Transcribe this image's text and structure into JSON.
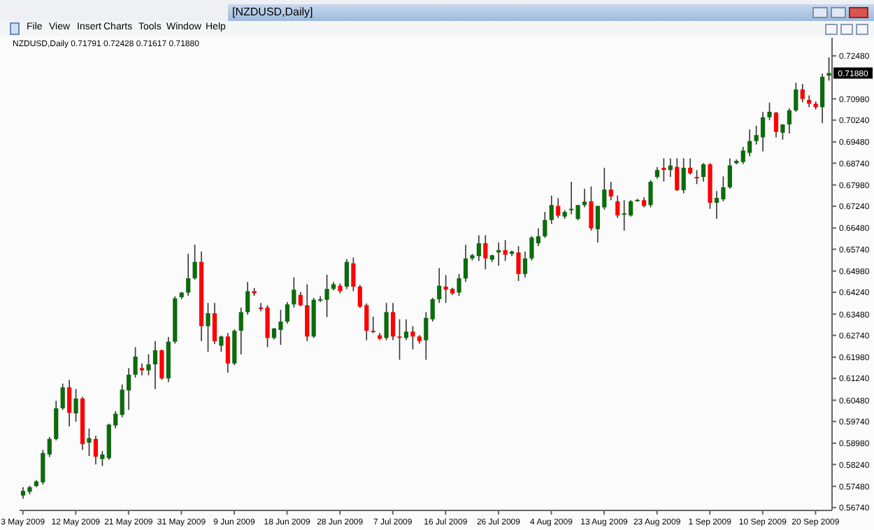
{
  "chart_data": {
    "type": "candlestick",
    "title": "[NZDUSD,Daily]",
    "subtitle": "NZDUSD,Daily  0.71791 0.72428 0.71617 0.71880",
    "annotations": [
      "File",
      "View",
      "Insert",
      "Charts",
      "Tools",
      "Window",
      "Help",
      "0.71880"
    ],
    "categories": [
      "3 May 2009",
      null,
      null,
      null,
      null,
      null,
      null,
      null,
      "12 May 2009",
      null,
      null,
      null,
      null,
      null,
      null,
      null,
      "21 May 2009",
      null,
      null,
      null,
      null,
      null,
      null,
      null,
      "31 May 2009",
      null,
      null,
      null,
      null,
      null,
      null,
      null,
      "9 Jun 2009",
      null,
      null,
      null,
      null,
      null,
      null,
      null,
      "18 Jun 2009",
      null,
      null,
      null,
      null,
      null,
      null,
      null,
      "28 Jun 2009",
      null,
      null,
      null,
      null,
      null,
      null,
      null,
      "7 Jul 2009",
      null,
      null,
      null,
      null,
      null,
      null,
      null,
      "16 Jul 2009",
      null,
      null,
      null,
      null,
      null,
      null,
      null,
      "26 Jul 2009",
      null,
      null,
      null,
      null,
      null,
      null,
      null,
      "4 Aug 2009",
      null,
      null,
      null,
      null,
      null,
      null,
      null,
      "13 Aug 2009",
      null,
      null,
      null,
      null,
      null,
      null,
      null,
      "23 Aug 2009",
      null,
      null,
      null,
      null,
      null,
      null,
      null,
      "1 Sep 2009",
      null,
      null,
      null,
      null,
      null,
      null,
      null,
      "10 Sep 2009",
      null,
      null,
      null,
      null,
      null,
      null,
      null,
      "20 Sep 2009",
      null,
      null
    ],
    "ohlc": [
      [
        0.5716,
        0.5745,
        0.5705,
        0.5732
      ],
      [
        0.5729,
        0.575,
        0.572,
        0.5745
      ],
      [
        0.5749,
        0.577,
        0.5745,
        0.5765
      ],
      [
        0.5762,
        0.5875,
        0.5754,
        0.5864
      ],
      [
        0.5859,
        0.592,
        0.585,
        0.5913
      ],
      [
        0.5913,
        0.6046,
        0.5908,
        0.602
      ],
      [
        0.602,
        0.6106,
        0.6014,
        0.6093
      ],
      [
        0.6093,
        0.6119,
        0.5957,
        0.6004
      ],
      [
        0.6002,
        0.6087,
        0.5973,
        0.6054
      ],
      [
        0.6054,
        0.606,
        0.5875,
        0.5895
      ],
      [
        0.59,
        0.5949,
        0.5854,
        0.5916
      ],
      [
        0.5913,
        0.5924,
        0.5824,
        0.5851
      ],
      [
        0.5843,
        0.5871,
        0.5819,
        0.5859
      ],
      [
        0.5846,
        0.5966,
        0.584,
        0.5963
      ],
      [
        0.596,
        0.601,
        0.595,
        0.6001
      ],
      [
        0.5997,
        0.6103,
        0.5989,
        0.6085
      ],
      [
        0.6082,
        0.616,
        0.6014,
        0.6137
      ],
      [
        0.6137,
        0.6233,
        0.6127,
        0.62
      ],
      [
        0.616,
        0.6176,
        0.6135,
        0.6152
      ],
      [
        0.6152,
        0.6208,
        0.6135,
        0.6173
      ],
      [
        0.6173,
        0.6254,
        0.6087,
        0.6222
      ],
      [
        0.6222,
        0.6225,
        0.6119,
        0.6124
      ],
      [
        0.6124,
        0.6268,
        0.6111,
        0.6252
      ],
      [
        0.6252,
        0.641,
        0.6245,
        0.6403
      ],
      [
        0.6407,
        0.6425,
        0.64,
        0.6423
      ],
      [
        0.6423,
        0.6558,
        0.6412,
        0.6473
      ],
      [
        0.6473,
        0.659,
        0.6468,
        0.653
      ],
      [
        0.653,
        0.6566,
        0.6254,
        0.6306
      ],
      [
        0.6306,
        0.6387,
        0.6217,
        0.6351
      ],
      [
        0.6351,
        0.6387,
        0.6244,
        0.6254
      ],
      [
        0.6238,
        0.6273,
        0.6217,
        0.627
      ],
      [
        0.627,
        0.6282,
        0.6144,
        0.6176
      ],
      [
        0.6176,
        0.6295,
        0.617,
        0.629
      ],
      [
        0.629,
        0.6371,
        0.6208,
        0.6355
      ],
      [
        0.6355,
        0.646,
        0.6346,
        0.6428
      ],
      [
        0.6428,
        0.6439,
        0.6412,
        0.642
      ],
      [
        0.6371,
        0.6387,
        0.6358,
        0.6368
      ],
      [
        0.6371,
        0.6379,
        0.6233,
        0.6265
      ],
      [
        0.6265,
        0.63,
        0.626,
        0.6298
      ],
      [
        0.6293,
        0.6363,
        0.6241,
        0.6322
      ],
      [
        0.6322,
        0.639,
        0.6315,
        0.6382
      ],
      [
        0.6382,
        0.6476,
        0.6371,
        0.6433
      ],
      [
        0.6415,
        0.6425,
        0.6375,
        0.6379
      ],
      [
        0.6379,
        0.6452,
        0.6254,
        0.627
      ],
      [
        0.627,
        0.6405,
        0.6265,
        0.6398
      ],
      [
        0.6398,
        0.641,
        0.639,
        0.64
      ],
      [
        0.6398,
        0.6485,
        0.6338,
        0.6436
      ],
      [
        0.6436,
        0.646,
        0.643,
        0.6452
      ],
      [
        0.6447,
        0.6455,
        0.642,
        0.6428
      ],
      [
        0.6444,
        0.654,
        0.6435,
        0.653
      ],
      [
        0.6525,
        0.6545,
        0.6428,
        0.6444
      ],
      [
        0.6444,
        0.645,
        0.637,
        0.6374
      ],
      [
        0.6379,
        0.6385,
        0.6257,
        0.629
      ],
      [
        0.629,
        0.6339,
        0.6282,
        0.6288
      ],
      [
        0.6274,
        0.6282,
        0.6258,
        0.6262
      ],
      [
        0.6265,
        0.6387,
        0.6257,
        0.6355
      ],
      [
        0.6355,
        0.6387,
        0.6257,
        0.627
      ],
      [
        0.627,
        0.633,
        0.6189,
        0.6265
      ],
      [
        0.6265,
        0.633,
        0.6257,
        0.6287
      ],
      [
        0.6287,
        0.6306,
        0.6225,
        0.627
      ],
      [
        0.627,
        0.6275,
        0.6245,
        0.6254
      ],
      [
        0.6257,
        0.6355,
        0.6189,
        0.6335
      ],
      [
        0.633,
        0.6405,
        0.6322,
        0.64
      ],
      [
        0.64,
        0.6508,
        0.6387,
        0.6447
      ],
      [
        0.6444,
        0.6484,
        0.6387,
        0.6433
      ],
      [
        0.6436,
        0.644,
        0.6415,
        0.642
      ],
      [
        0.6423,
        0.6488,
        0.6412,
        0.6473
      ],
      [
        0.6472,
        0.659,
        0.646,
        0.6542
      ],
      [
        0.6542,
        0.6558,
        0.6535,
        0.6553
      ],
      [
        0.655,
        0.6623,
        0.6533,
        0.6595
      ],
      [
        0.6595,
        0.6623,
        0.6504,
        0.6542
      ],
      [
        0.6538,
        0.6555,
        0.653,
        0.6553
      ],
      [
        0.6563,
        0.6598,
        0.6517,
        0.6571
      ],
      [
        0.6571,
        0.6606,
        0.6533,
        0.6555
      ],
      [
        0.6558,
        0.657,
        0.655,
        0.6566
      ],
      [
        0.6563,
        0.6585,
        0.6463,
        0.6488
      ],
      [
        0.6488,
        0.6566,
        0.6476,
        0.6542
      ],
      [
        0.6542,
        0.662,
        0.6535,
        0.6615
      ],
      [
        0.6595,
        0.6647,
        0.6585,
        0.6619
      ],
      [
        0.6619,
        0.6704,
        0.6614,
        0.6676
      ],
      [
        0.6676,
        0.6761,
        0.6663,
        0.6728
      ],
      [
        0.6725,
        0.6752,
        0.6683,
        0.6691
      ],
      [
        0.6688,
        0.671,
        0.668,
        0.6704
      ],
      [
        0.6711,
        0.6809,
        0.6696,
        0.6715
      ],
      [
        0.668,
        0.6728,
        0.6675,
        0.6728
      ],
      [
        0.6728,
        0.6785,
        0.672,
        0.674
      ],
      [
        0.6741,
        0.6793,
        0.6639,
        0.6647
      ],
      [
        0.6644,
        0.6725,
        0.6598,
        0.6725
      ],
      [
        0.672,
        0.6858,
        0.6712,
        0.6782
      ],
      [
        0.6782,
        0.6809,
        0.6745,
        0.6758
      ],
      [
        0.6741,
        0.6761,
        0.6683,
        0.6692
      ],
      [
        0.6696,
        0.6745,
        0.6639,
        0.6699
      ],
      [
        0.6692,
        0.6745,
        0.6688,
        0.6741
      ],
      [
        0.6744,
        0.675,
        0.674,
        0.6746
      ],
      [
        0.6745,
        0.6755,
        0.672,
        0.6725
      ],
      [
        0.6728,
        0.6815,
        0.672,
        0.6809
      ],
      [
        0.6826,
        0.686,
        0.682,
        0.685
      ],
      [
        0.6858,
        0.6891,
        0.681,
        0.685
      ],
      [
        0.685,
        0.6891,
        0.6826,
        0.6866
      ],
      [
        0.6861,
        0.6891,
        0.6777,
        0.678
      ],
      [
        0.678,
        0.6891,
        0.6769,
        0.6858
      ],
      [
        0.6858,
        0.6891,
        0.6834,
        0.6839
      ],
      [
        0.6826,
        0.685,
        0.6801,
        0.6822
      ],
      [
        0.6826,
        0.6874,
        0.681,
        0.687
      ],
      [
        0.687,
        0.6874,
        0.6715,
        0.6736
      ],
      [
        0.6736,
        0.6777,
        0.668,
        0.6753
      ],
      [
        0.6748,
        0.6828,
        0.6741,
        0.679
      ],
      [
        0.679,
        0.6891,
        0.6785,
        0.6866
      ],
      [
        0.6874,
        0.6887,
        0.687,
        0.6882
      ],
      [
        0.6878,
        0.6931,
        0.6871,
        0.6918
      ],
      [
        0.691,
        0.6991,
        0.6898,
        0.6951
      ],
      [
        0.6951,
        0.7004,
        0.6939,
        0.6972
      ],
      [
        0.6964,
        0.7053,
        0.6915,
        0.7034
      ],
      [
        0.7034,
        0.7085,
        0.7024,
        0.7053
      ],
      [
        0.705,
        0.7053,
        0.6964,
        0.6983
      ],
      [
        0.698,
        0.701,
        0.6956,
        0.7009
      ],
      [
        0.7009,
        0.7065,
        0.6977,
        0.7058
      ],
      [
        0.7058,
        0.7154,
        0.7053,
        0.7131
      ],
      [
        0.7131,
        0.715,
        0.7086,
        0.7098
      ],
      [
        0.7094,
        0.711,
        0.7069,
        0.7081
      ],
      [
        0.7081,
        0.7089,
        0.7061,
        0.7069
      ],
      [
        0.7069,
        0.7186,
        0.7013,
        0.7175
      ],
      [
        0.71791,
        0.72428,
        0.71617,
        0.7188
      ]
    ],
    "colors": [
      "#0c6b0c",
      "#0c6b0c",
      "#0c6b0c",
      "#0c6b0c",
      "#0c6b0c",
      "#0c6b0c",
      "#0c6b0c",
      "#ff0000",
      "#0c6b0c",
      "#ff0000",
      "#0c6b0c",
      "#ff0000",
      "#0c6b0c",
      "#0c6b0c",
      "#0c6b0c",
      "#0c6b0c",
      "#0c6b0c",
      "#0c6b0c",
      "#ff0000",
      "#0c6b0c",
      "#0c6b0c",
      "#ff0000",
      "#0c6b0c",
      "#0c6b0c",
      "#0c6b0c",
      "#0c6b0c",
      "#0c6b0c",
      "#ff0000",
      "#0c6b0c",
      "#ff0000",
      "#0c6b0c",
      "#ff0000",
      "#0c6b0c",
      "#0c6b0c",
      "#0c6b0c",
      "#ff0000",
      "#ff0000",
      "#ff0000",
      "#0c6b0c",
      "#0c6b0c",
      "#0c6b0c",
      "#0c6b0c",
      "#ff0000",
      "#ff0000",
      "#0c6b0c",
      "#0c6b0c",
      "#0c6b0c",
      "#0c6b0c",
      "#ff0000",
      "#0c6b0c",
      "#ff0000",
      "#ff0000",
      "#ff0000",
      "#ff0000",
      "#ff0000",
      "#0c6b0c",
      "#ff0000",
      "#ff0000",
      "#0c6b0c",
      "#ff0000",
      "#ff0000",
      "#0c6b0c",
      "#0c6b0c",
      "#0c6b0c",
      "#ff0000",
      "#ff0000",
      "#0c6b0c",
      "#0c6b0c",
      "#0c6b0c",
      "#0c6b0c",
      "#ff0000",
      "#0c6b0c",
      "#0c6b0c",
      "#ff0000",
      "#0c6b0c",
      "#ff0000",
      "#0c6b0c",
      "#0c6b0c",
      "#0c6b0c",
      "#0c6b0c",
      "#0c6b0c",
      "#ff0000",
      "#0c6b0c",
      "#0c6b0c",
      "#0c6b0c",
      "#0c6b0c",
      "#ff0000",
      "#0c6b0c",
      "#0c6b0c",
      "#ff0000",
      "#ff0000",
      "#0c6b0c",
      "#0c6b0c",
      "#0c6b0c",
      "#ff0000",
      "#0c6b0c",
      "#0c6b0c",
      "#ff0000",
      "#0c6b0c",
      "#ff0000",
      "#0c6b0c",
      "#ff0000",
      "#ff0000",
      "#0c6b0c",
      "#ff0000",
      "#0c6b0c",
      "#0c6b0c",
      "#0c6b0c",
      "#0c6b0c",
      "#0c6b0c",
      "#0c6b0c",
      "#0c6b0c",
      "#0c6b0c",
      "#0c6b0c",
      "#ff0000",
      "#0c6b0c",
      "#0c6b0c",
      "#0c6b0c",
      "#ff0000",
      "#ff0000",
      "#ff0000",
      "#0c6b0c",
      "#0c6b0c"
    ],
    "ylim": [
      0.5664,
      0.7311
    ],
    "yticks": [
      {
        "value": 0.5674,
        "label": "0.56740"
      },
      {
        "value": 0.5748,
        "label": "0.57480"
      },
      {
        "value": 0.5824,
        "label": "0.58240"
      },
      {
        "value": 0.5898,
        "label": "0.58980"
      },
      {
        "value": 0.5974,
        "label": "0.59740"
      },
      {
        "value": 0.6048,
        "label": "0.60480"
      },
      {
        "value": 0.6124,
        "label": "0.61240"
      },
      {
        "value": 0.6198,
        "label": "0.61980"
      },
      {
        "value": 0.6274,
        "label": "0.62740"
      },
      {
        "value": 0.6348,
        "label": "0.63480"
      },
      {
        "value": 0.6424,
        "label": "0.64240"
      },
      {
        "value": 0.6498,
        "label": "0.64980"
      },
      {
        "value": 0.6574,
        "label": "0.65740"
      },
      {
        "value": 0.6648,
        "label": "0.66480"
      },
      {
        "value": 0.6724,
        "label": "0.67240"
      },
      {
        "value": 0.6798,
        "label": "0.67980"
      },
      {
        "value": 0.6874,
        "label": "0.68740"
      },
      {
        "value": 0.6948,
        "label": "0.69480"
      },
      {
        "value": 0.7024,
        "label": "0.70240"
      },
      {
        "value": 0.7098,
        "label": "0.70980"
      },
      {
        "value": 0.7248,
        "label": "0.72480"
      }
    ]
  }
}
